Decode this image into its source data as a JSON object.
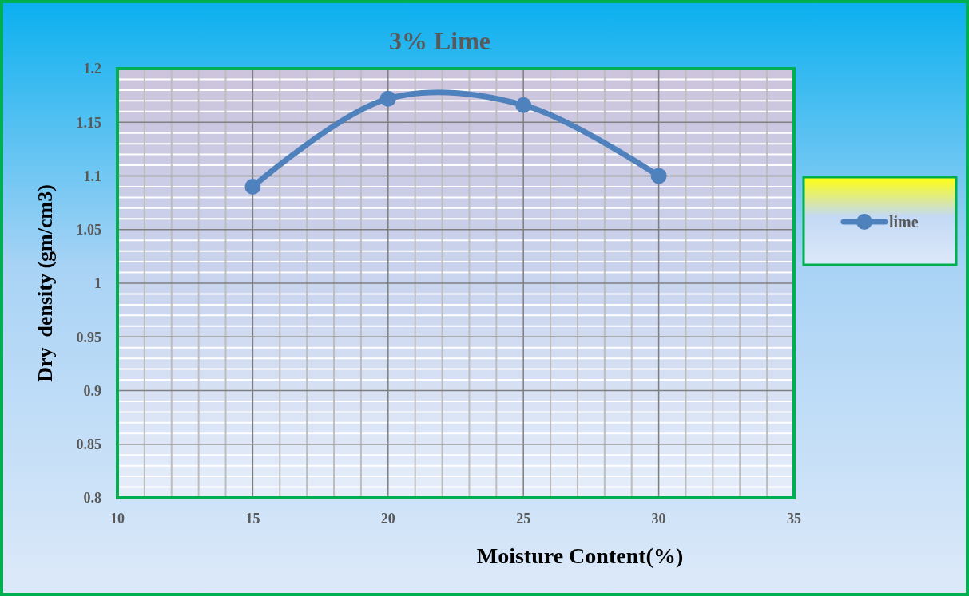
{
  "chart_data": {
    "type": "line",
    "title": "3% Lime",
    "xlabel": "Moisture Content(%)",
    "ylabel": "Dry  density (gm/cm3)",
    "x": [
      15,
      20,
      25,
      30
    ],
    "series": [
      {
        "name": "lime",
        "color": "#4f81bd",
        "values": [
          1.09,
          1.172,
          1.166,
          1.1
        ]
      }
    ],
    "xlim": [
      10,
      35
    ],
    "xticks": [
      10,
      15,
      20,
      25,
      30,
      35
    ],
    "ylim": [
      0.8,
      1.2
    ],
    "yticks": [
      {
        "value": 0.8,
        "label": "0.8"
      },
      {
        "value": 0.85,
        "label": "0.85"
      },
      {
        "value": 0.9,
        "label": "0.9"
      },
      {
        "value": 0.95,
        "label": "0.95"
      },
      {
        "value": 1,
        "label": "1"
      },
      {
        "value": 1.05,
        "label": "1.05"
      },
      {
        "value": 1.1,
        "label": "1.1"
      },
      {
        "value": 1.15,
        "label": "1.15"
      },
      {
        "value": 1.2,
        "label": "1.2"
      }
    ],
    "grid": true,
    "legend": "right",
    "marker": "circle",
    "line_style": "solid"
  }
}
